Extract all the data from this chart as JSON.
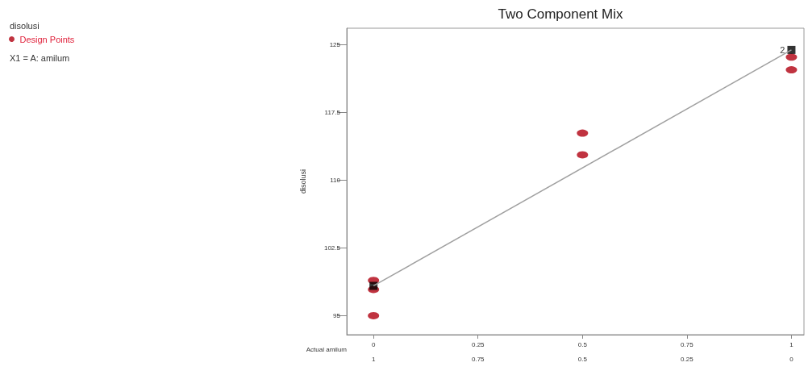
{
  "chart_data": {
    "type": "scatter",
    "title": "Two Component Mix",
    "xlabel": "Actual amilum",
    "ylabel": "disolusi",
    "xlim": [
      -0.064,
      1.03
    ],
    "xticks": [
      0,
      0.25,
      0.5,
      0.75,
      1
    ],
    "x2lim": [
      1.064,
      -0.03
    ],
    "x2ticks": [
      1,
      0.75,
      0.5,
      0.25,
      0
    ],
    "ylim": [
      92.9,
      126.8
    ],
    "yticks": [
      95,
      102.5,
      110,
      117.5,
      125
    ],
    "series": [
      {
        "name": "Design Points",
        "color": "#b00010",
        "marker": "circle",
        "x": [
          0,
          0,
          0,
          0.5,
          0.5,
          1,
          1
        ],
        "values": [
          98.9,
          97.9,
          95,
          115.2,
          112.8,
          123.6,
          122.2
        ]
      },
      {
        "color": "#000000",
        "marker": "square",
        "x": [
          0,
          1
        ],
        "values": [
          98.3,
          124.4
        ]
      },
      {
        "type": "line",
        "color": "#a0a0a0",
        "marker": "none",
        "x": [
          0,
          1
        ],
        "values": [
          98.3,
          124.4
        ]
      }
    ],
    "legend": "top left",
    "grid": false,
    "annotations": [
      "disolusi",
      "X1 = A: amilum",
      {
        "text": "2",
        "x": 1,
        "y": 124.4
      }
    ]
  }
}
